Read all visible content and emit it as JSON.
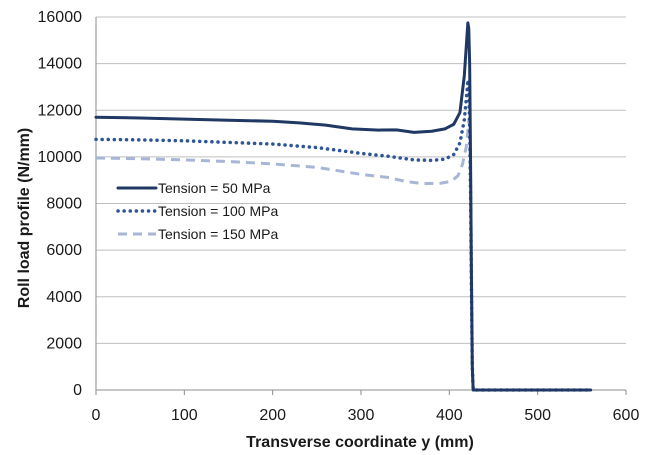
{
  "chart_data": {
    "type": "line",
    "title": "",
    "xlabel": "Transverse coordinate y (mm)",
    "ylabel": "Roll load profile (N/mm)",
    "xlim": [
      0,
      600
    ],
    "ylim": [
      0,
      16000
    ],
    "xticks": [
      0,
      100,
      200,
      300,
      400,
      500,
      600
    ],
    "yticks": [
      0,
      2000,
      4000,
      6000,
      8000,
      10000,
      12000,
      14000,
      16000
    ],
    "grid": "horizontal",
    "legend_position": "left",
    "series": [
      {
        "name": "Tension = 50 MPa",
        "color": "#1f3864",
        "dash": "solid",
        "points": [
          [
            0,
            11700
          ],
          [
            50,
            11670
          ],
          [
            100,
            11620
          ],
          [
            150,
            11570
          ],
          [
            200,
            11530
          ],
          [
            230,
            11460
          ],
          [
            260,
            11360
          ],
          [
            290,
            11200
          ],
          [
            320,
            11150
          ],
          [
            340,
            11160
          ],
          [
            360,
            11050
          ],
          [
            380,
            11100
          ],
          [
            395,
            11200
          ],
          [
            405,
            11400
          ],
          [
            412,
            11900
          ],
          [
            417,
            13500
          ],
          [
            420,
            15200
          ],
          [
            421,
            15750
          ],
          [
            422,
            15500
          ],
          [
            423,
            14000
          ],
          [
            424,
            10000
          ],
          [
            425,
            5000
          ],
          [
            426,
            1000
          ],
          [
            427,
            0
          ],
          [
            450,
            0
          ],
          [
            500,
            0
          ],
          [
            560,
            0
          ]
        ]
      },
      {
        "name": "Tension = 100 MPa",
        "color": "#2e5597",
        "dash": "dotted",
        "points": [
          [
            0,
            10750
          ],
          [
            50,
            10730
          ],
          [
            100,
            10690
          ],
          [
            150,
            10620
          ],
          [
            200,
            10550
          ],
          [
            250,
            10400
          ],
          [
            300,
            10150
          ],
          [
            330,
            10030
          ],
          [
            360,
            9870
          ],
          [
            380,
            9850
          ],
          [
            395,
            9900
          ],
          [
            405,
            10100
          ],
          [
            412,
            10600
          ],
          [
            417,
            11600
          ],
          [
            420,
            12800
          ],
          [
            421,
            13300
          ],
          [
            422,
            13000
          ],
          [
            423,
            11500
          ],
          [
            424,
            8500
          ],
          [
            425,
            4500
          ],
          [
            426,
            1000
          ],
          [
            427,
            0
          ],
          [
            450,
            0
          ],
          [
            500,
            0
          ],
          [
            560,
            0
          ]
        ]
      },
      {
        "name": "Tension = 150 MPa",
        "color": "#a8b6d6",
        "dash": "dashed",
        "points": [
          [
            0,
            9950
          ],
          [
            50,
            9920
          ],
          [
            100,
            9870
          ],
          [
            150,
            9800
          ],
          [
            200,
            9700
          ],
          [
            250,
            9550
          ],
          [
            300,
            9250
          ],
          [
            330,
            9120
          ],
          [
            350,
            8950
          ],
          [
            370,
            8850
          ],
          [
            390,
            8870
          ],
          [
            402,
            8950
          ],
          [
            410,
            9200
          ],
          [
            415,
            9700
          ],
          [
            419,
            10400
          ],
          [
            421,
            11100
          ],
          [
            422,
            11600
          ],
          [
            423,
            11200
          ],
          [
            424,
            8500
          ],
          [
            425,
            4500
          ],
          [
            426,
            1000
          ],
          [
            427,
            0
          ],
          [
            450,
            0
          ],
          [
            500,
            0
          ],
          [
            560,
            0
          ]
        ]
      }
    ]
  }
}
